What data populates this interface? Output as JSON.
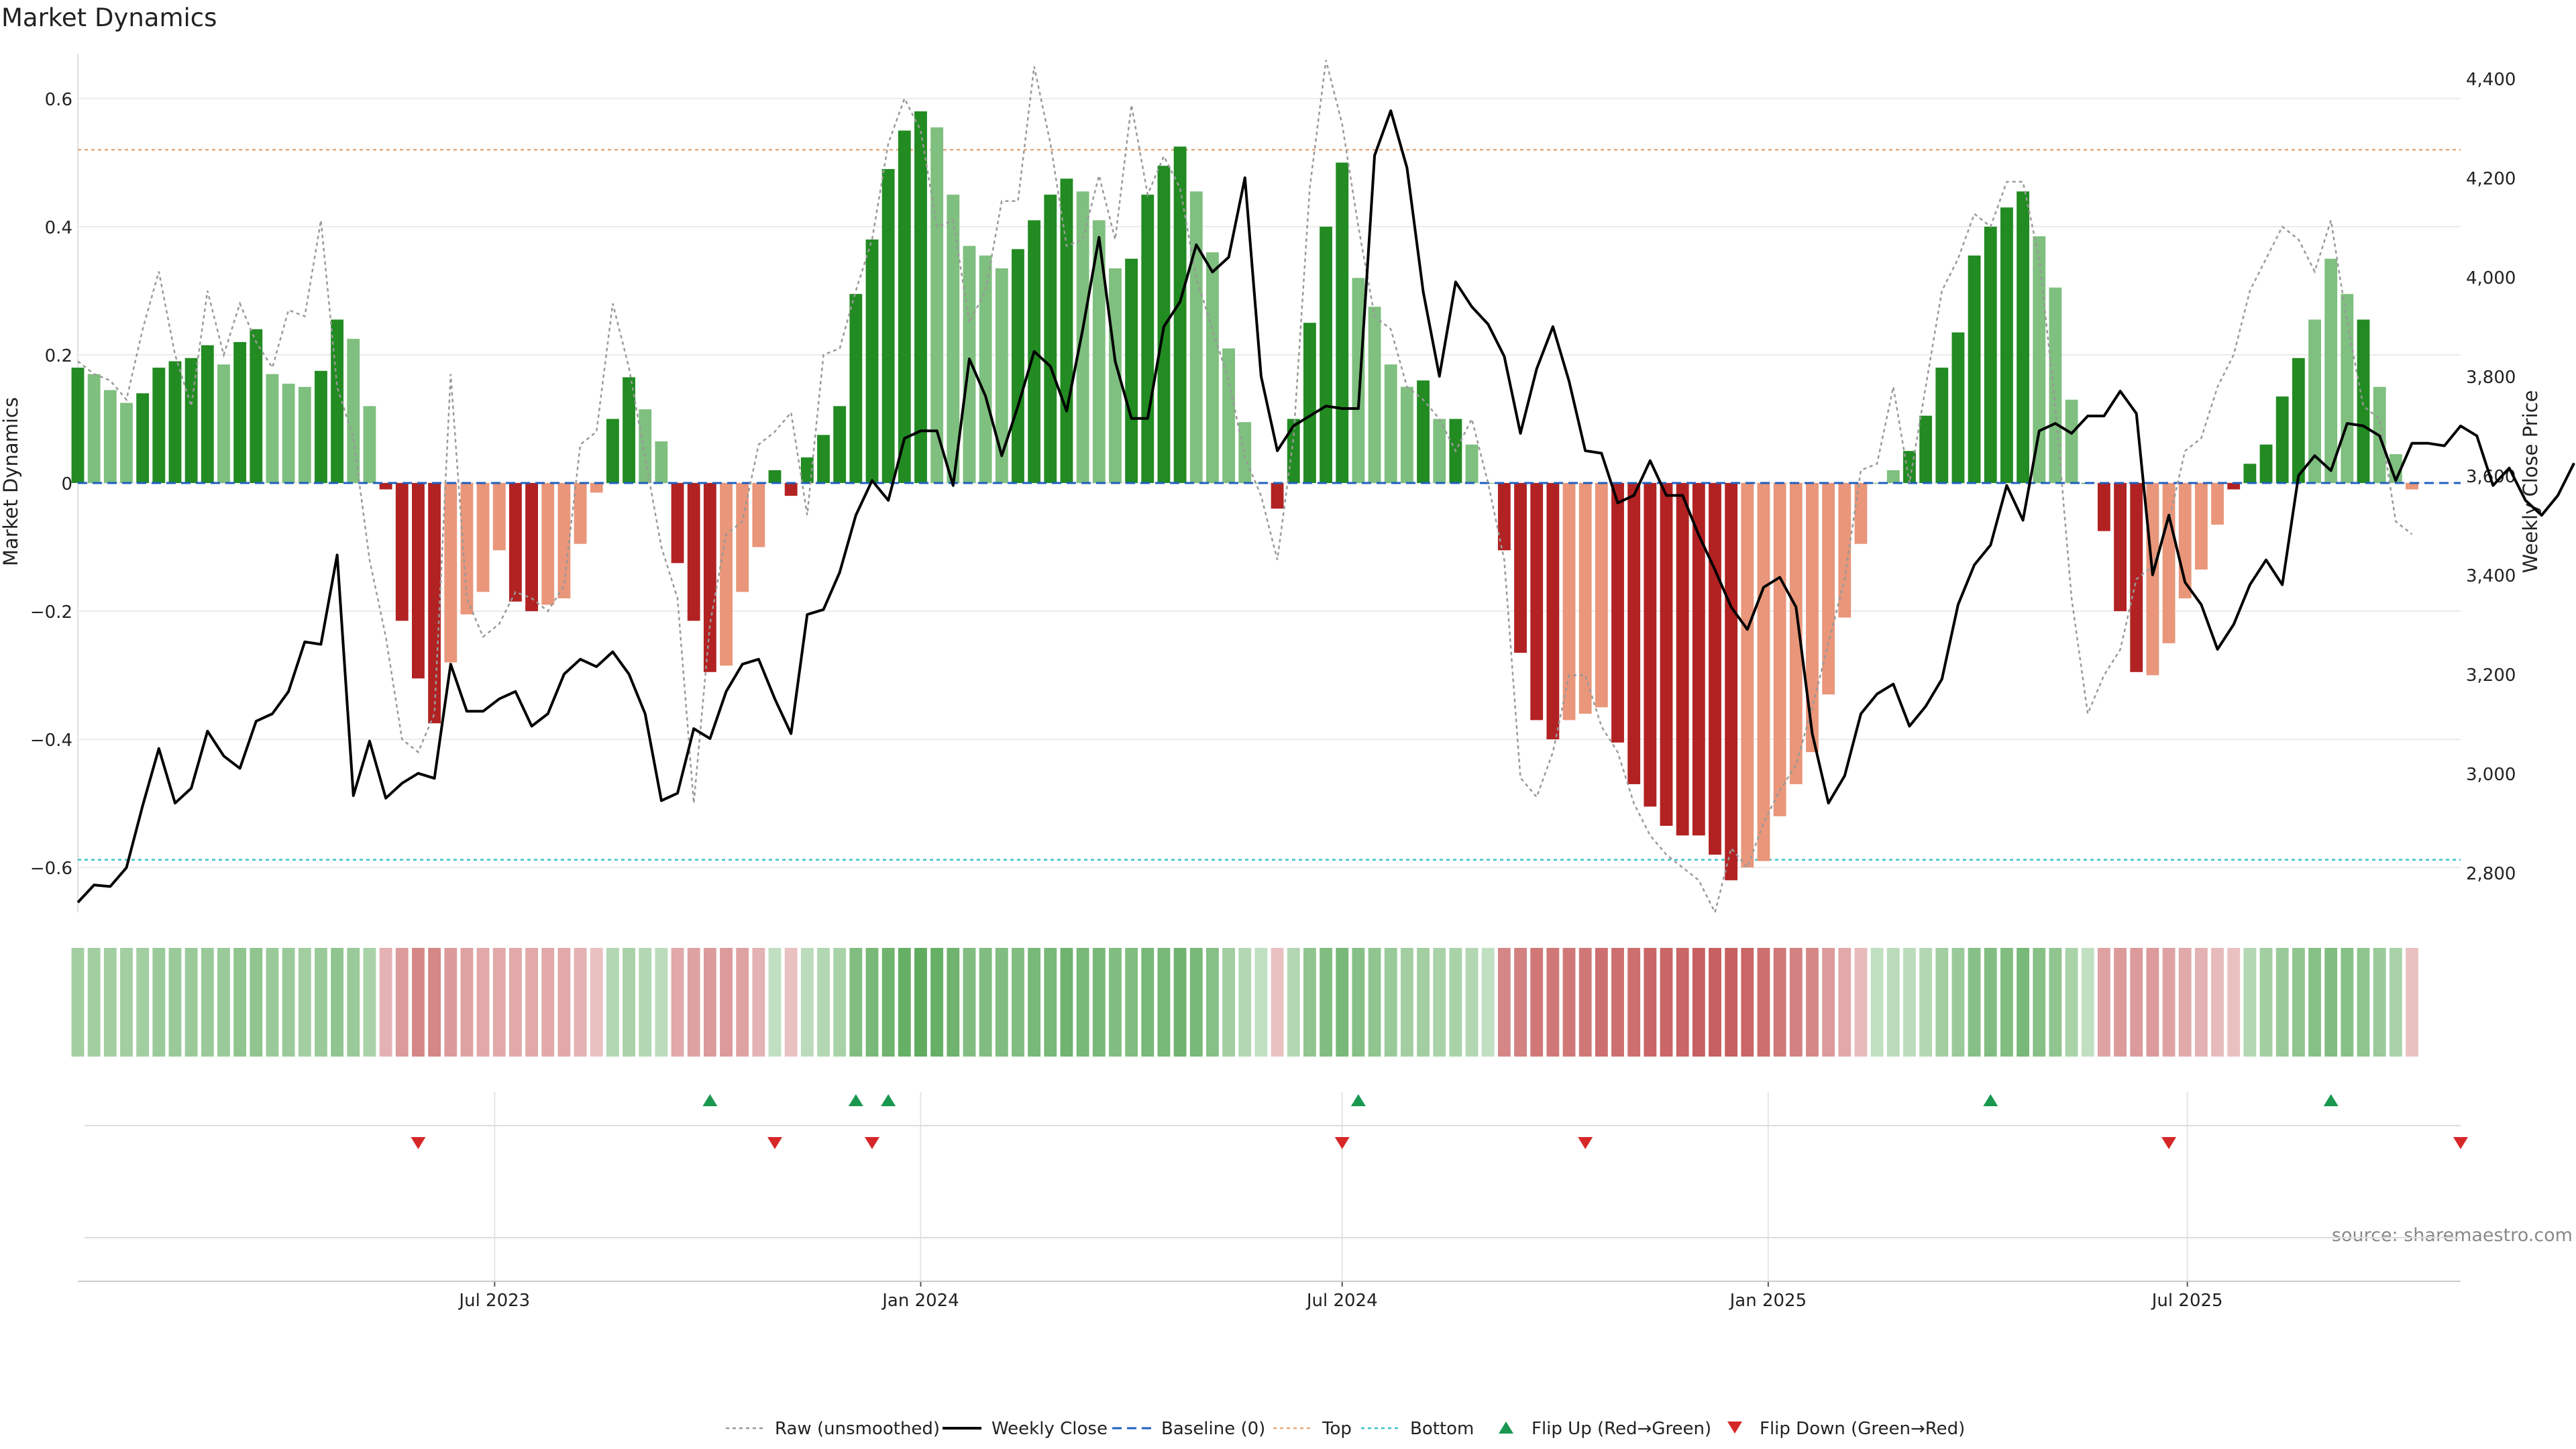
{
  "chart_data": {
    "type": "bar",
    "title": "Market Dynamics",
    "ylabel_left": "Market Dynamics",
    "ylabel_right": "Weekly Close Price",
    "source": "source: sharemaestro.com",
    "x_start": "2023-01-02",
    "x_end": "2025-10-27",
    "x_tick_labels": [
      "Jul 2023",
      "Jan 2024",
      "Jul 2024",
      "Jan 2025",
      "Jul 2025"
    ],
    "x_tick_dates": [
      "2023-07-01",
      "2024-01-01",
      "2024-07-01",
      "2025-01-01",
      "2025-07-01"
    ],
    "ylim_left": [
      -0.67,
      0.67
    ],
    "yticks_left": [
      0.6,
      0.4,
      0.2,
      0,
      -0.2,
      -0.4,
      -0.6
    ],
    "ytick_labels_left": [
      "0.6",
      "0.4",
      "0.2",
      "0",
      "−0.2",
      "−0.4",
      "−0.6"
    ],
    "ylim_right": [
      2720,
      4450
    ],
    "yticks_right": [
      4400,
      4200,
      4000,
      3800,
      3600,
      3400,
      3200,
      3000,
      2800
    ],
    "ytick_labels_right": [
      "4,400",
      "4,200",
      "4,000",
      "3,800",
      "3,600",
      "3,400",
      "3,200",
      "3,000",
      "2,800"
    ],
    "top_line": 0.52,
    "bottom_line": -0.588,
    "baseline": 0,
    "grid": true,
    "legend_position": "bottom-center",
    "legend": [
      "Raw (unsmoothed)",
      "Weekly Close",
      "Baseline (0)",
      "Top",
      "Bottom",
      "Flip Up (Red→Green)",
      "Flip Down (Green→Red)"
    ],
    "colors": {
      "strong_green": "#228b22",
      "light_green": "#7fbf7f",
      "strong_red": "#b22222",
      "light_red": "#e9967a",
      "weekly_close": "#000000",
      "raw": "#999999",
      "baseline": "#1f5fbf",
      "top": "#e8a878",
      "bottom": "#3cc0c8",
      "flip_up": "#1a9850",
      "flip_down": "#d62728"
    },
    "bars_start": "2023-01-02",
    "bars": [
      0.18,
      0.17,
      0.145,
      0.125,
      0.14,
      0.18,
      0.19,
      0.195,
      0.215,
      0.185,
      0.22,
      0.24,
      0.17,
      0.155,
      0.15,
      0.175,
      0.255,
      0.225,
      0.12,
      -0.01,
      -0.215,
      -0.305,
      -0.375,
      -0.28,
      -0.205,
      -0.17,
      -0.105,
      -0.185,
      -0.2,
      -0.19,
      -0.18,
      -0.095,
      -0.015,
      0.1,
      0.165,
      0.115,
      0.065,
      -0.125,
      -0.215,
      -0.295,
      -0.285,
      -0.17,
      -0.1,
      0.02,
      -0.02,
      0.04,
      0.075,
      0.12,
      0.295,
      0.38,
      0.49,
      0.55,
      0.58,
      0.555,
      0.45,
      0.37,
      0.355,
      0.335,
      0.365,
      0.41,
      0.45,
      0.475,
      0.455,
      0.41,
      0.335,
      0.35,
      0.45,
      0.495,
      0.525,
      0.455,
      0.36,
      0.21,
      0.095,
      0.0,
      -0.04,
      0.1,
      0.25,
      0.4,
      0.5,
      0.32,
      0.275,
      0.185,
      0.15,
      0.16,
      0.1,
      0.1,
      0.06,
      0.0,
      -0.105,
      -0.265,
      -0.37,
      -0.4,
      -0.37,
      -0.36,
      -0.35,
      -0.405,
      -0.47,
      -0.505,
      -0.535,
      -0.55,
      -0.55,
      -0.58,
      -0.62,
      -0.6,
      -0.59,
      -0.52,
      -0.47,
      -0.42,
      -0.33,
      -0.21,
      -0.095,
      0.0,
      0.02,
      0.05,
      0.105,
      0.18,
      0.235,
      0.355,
      0.4,
      0.43,
      0.455,
      0.385,
      0.305,
      0.13,
      0.0,
      -0.075,
      -0.2,
      -0.295,
      -0.3,
      -0.25,
      -0.18,
      -0.135,
      -0.065,
      -0.01,
      0.03,
      0.06,
      0.135,
      0.195,
      0.255,
      0.35,
      0.295,
      0.255,
      0.15,
      0.045,
      -0.01
    ],
    "bar_strength": [
      1,
      0,
      0,
      0,
      1,
      1,
      1,
      1,
      1,
      0,
      1,
      1,
      0,
      0,
      0,
      1,
      1,
      0,
      0,
      1,
      1,
      1,
      1,
      0,
      0,
      0,
      0,
      1,
      1,
      0,
      0,
      0,
      0,
      1,
      1,
      0,
      0,
      1,
      1,
      1,
      0,
      0,
      0,
      1,
      1,
      1,
      1,
      1,
      1,
      1,
      1,
      1,
      1,
      0,
      0,
      0,
      0,
      0,
      1,
      1,
      1,
      1,
      0,
      0,
      0,
      1,
      1,
      1,
      1,
      0,
      0,
      0,
      0,
      0,
      1,
      1,
      1,
      1,
      1,
      0,
      0,
      0,
      0,
      1,
      0,
      1,
      0,
      0,
      1,
      1,
      1,
      1,
      0,
      0,
      0,
      1,
      1,
      1,
      1,
      1,
      1,
      1,
      1,
      0,
      0,
      0,
      0,
      0,
      0,
      0,
      0,
      0,
      0,
      1,
      1,
      1,
      1,
      1,
      1,
      1,
      1,
      0,
      0,
      0,
      1,
      1,
      1,
      1,
      0,
      0,
      0,
      0,
      0,
      1,
      1,
      1,
      1,
      1,
      0,
      0,
      0,
      1
    ],
    "heat_values": [
      0.3,
      0.3,
      0.3,
      0.3,
      0.3,
      0.35,
      0.35,
      0.35,
      0.35,
      0.35,
      0.4,
      0.4,
      0.35,
      0.35,
      0.3,
      0.35,
      0.4,
      0.35,
      0.25,
      -0.2,
      -0.35,
      -0.45,
      -0.45,
      -0.35,
      -0.3,
      -0.25,
      -0.25,
      -0.25,
      -0.25,
      -0.25,
      -0.25,
      -0.2,
      -0.1,
      0.2,
      0.25,
      0.2,
      0.15,
      -0.25,
      -0.3,
      -0.35,
      -0.35,
      -0.3,
      -0.2,
      0.1,
      -0.1,
      0.15,
      0.2,
      0.25,
      0.5,
      0.55,
      0.6,
      0.65,
      0.7,
      0.65,
      0.6,
      0.5,
      0.5,
      0.5,
      0.5,
      0.55,
      0.55,
      0.6,
      0.55,
      0.55,
      0.5,
      0.5,
      0.55,
      0.55,
      0.6,
      0.55,
      0.45,
      0.3,
      0.2,
      0.1,
      -0.1,
      0.2,
      0.4,
      0.5,
      0.55,
      0.45,
      0.4,
      0.35,
      0.3,
      0.3,
      0.25,
      0.25,
      0.2,
      0.1,
      -0.45,
      -0.5,
      -0.55,
      -0.55,
      -0.55,
      -0.55,
      -0.6,
      -0.6,
      -0.6,
      -0.65,
      -0.65,
      -0.65,
      -0.7,
      -0.7,
      -0.7,
      -0.65,
      -0.6,
      -0.55,
      -0.5,
      -0.45,
      -0.35,
      -0.25,
      -0.15,
      0.1,
      0.15,
      0.15,
      0.2,
      0.3,
      0.35,
      0.45,
      0.5,
      0.5,
      0.55,
      0.45,
      0.4,
      0.25,
      0.1,
      -0.3,
      -0.35,
      -0.35,
      -0.35,
      -0.3,
      -0.25,
      -0.2,
      -0.15,
      -0.1,
      0.2,
      0.3,
      0.35,
      0.4,
      0.45,
      0.5,
      0.45,
      0.4,
      0.35,
      0.25,
      -0.1
    ],
    "weekly_close_start": "2023-01-02",
    "weekly_close": [
      2740,
      2775,
      2772,
      2810,
      2935,
      3050,
      2940,
      2970,
      3085,
      3035,
      3010,
      3105,
      3120,
      3165,
      3265,
      3260,
      3440,
      2955,
      3065,
      2950,
      2980,
      3000,
      2990,
      3220,
      3125,
      3125,
      3150,
      3165,
      3095,
      3120,
      3200,
      3230,
      3215,
      3245,
      3200,
      3120,
      2945,
      2960,
      3090,
      3070,
      3165,
      3220,
      3230,
      3150,
      3080,
      3320,
      3330,
      3405,
      3520,
      3590,
      3550,
      3675,
      3690,
      3690,
      3580,
      3835,
      3760,
      3640,
      3740,
      3850,
      3820,
      3730,
      3895,
      4080,
      3830,
      3715,
      3715,
      3900,
      3950,
      4065,
      4010,
      4040,
      4200,
      3800,
      3650,
      3700,
      3720,
      3740,
      3735,
      3735,
      4245,
      4335,
      4220,
      3970,
      3800,
      3990,
      3940,
      3905,
      3840,
      3685,
      3815,
      3900,
      3790,
      3650,
      3645,
      3545,
      3560,
      3630,
      3560,
      3560,
      3480,
      3410,
      3335,
      3290,
      3375,
      3395,
      3335,
      3080,
      2940,
      2995,
      3120,
      3160,
      3180,
      3095,
      3135,
      3190,
      3340,
      3420,
      3460,
      3580,
      3510,
      3690,
      3705,
      3685,
      3720,
      3720,
      3770,
      3725,
      3400,
      3520,
      3385,
      3340,
      3250,
      3300,
      3380,
      3430,
      3380,
      3600,
      3640,
      3610,
      3705,
      3700,
      3680,
      3590,
      3665,
      3665,
      3660,
      3700,
      3680,
      3580,
      3615,
      3550,
      3520,
      3560,
      3625
    ],
    "raw_start": "2023-01-02",
    "raw": [
      0.19,
      0.17,
      0.16,
      0.13,
      0.24,
      0.33,
      0.2,
      0.12,
      0.3,
      0.2,
      0.28,
      0.22,
      0.18,
      0.27,
      0.26,
      0.41,
      0.15,
      0.07,
      -0.12,
      -0.24,
      -0.4,
      -0.42,
      -0.36,
      0.17,
      -0.18,
      -0.24,
      -0.22,
      -0.17,
      -0.18,
      -0.2,
      -0.16,
      0.06,
      0.08,
      0.28,
      0.18,
      0.04,
      -0.1,
      -0.18,
      -0.5,
      -0.22,
      -0.08,
      -0.06,
      0.06,
      0.08,
      0.11,
      -0.05,
      0.2,
      0.21,
      0.3,
      0.38,
      0.53,
      0.6,
      0.55,
      0.4,
      0.41,
      0.25,
      0.3,
      0.44,
      0.44,
      0.65,
      0.53,
      0.37,
      0.38,
      0.48,
      0.38,
      0.59,
      0.45,
      0.51,
      0.46,
      0.32,
      0.24,
      0.16,
      0.04,
      -0.02,
      -0.12,
      0.07,
      0.46,
      0.66,
      0.56,
      0.4,
      0.26,
      0.24,
      0.15,
      0.13,
      0.1,
      0.05,
      0.1,
      0.0,
      -0.12,
      -0.46,
      -0.49,
      -0.42,
      -0.3,
      -0.3,
      -0.38,
      -0.42,
      -0.5,
      -0.55,
      -0.58,
      -0.6,
      -0.62,
      -0.67,
      -0.57,
      -0.6,
      -0.53,
      -0.48,
      -0.44,
      -0.35,
      -0.25,
      -0.15,
      0.02,
      0.03,
      0.15,
      0.0,
      0.15,
      0.3,
      0.35,
      0.42,
      0.4,
      0.47,
      0.47,
      0.35,
      0.12,
      -0.18,
      -0.36,
      -0.3,
      -0.26,
      -0.15,
      -0.13,
      -0.06,
      0.05,
      0.07,
      0.15,
      0.2,
      0.3,
      0.35,
      0.4,
      0.38,
      0.33,
      0.41,
      0.25,
      0.12,
      0.1,
      -0.06,
      -0.08
    ],
    "flip_up_dates": [
      "2023-10-02",
      "2023-12-04",
      "2023-12-18",
      "2024-07-08",
      "2025-04-07",
      "2025-09-01"
    ],
    "flip_down_dates": [
      "2023-05-29",
      "2023-10-30",
      "2023-12-11",
      "2024-07-01",
      "2024-10-14",
      "2025-06-23",
      "2025-10-27"
    ]
  }
}
